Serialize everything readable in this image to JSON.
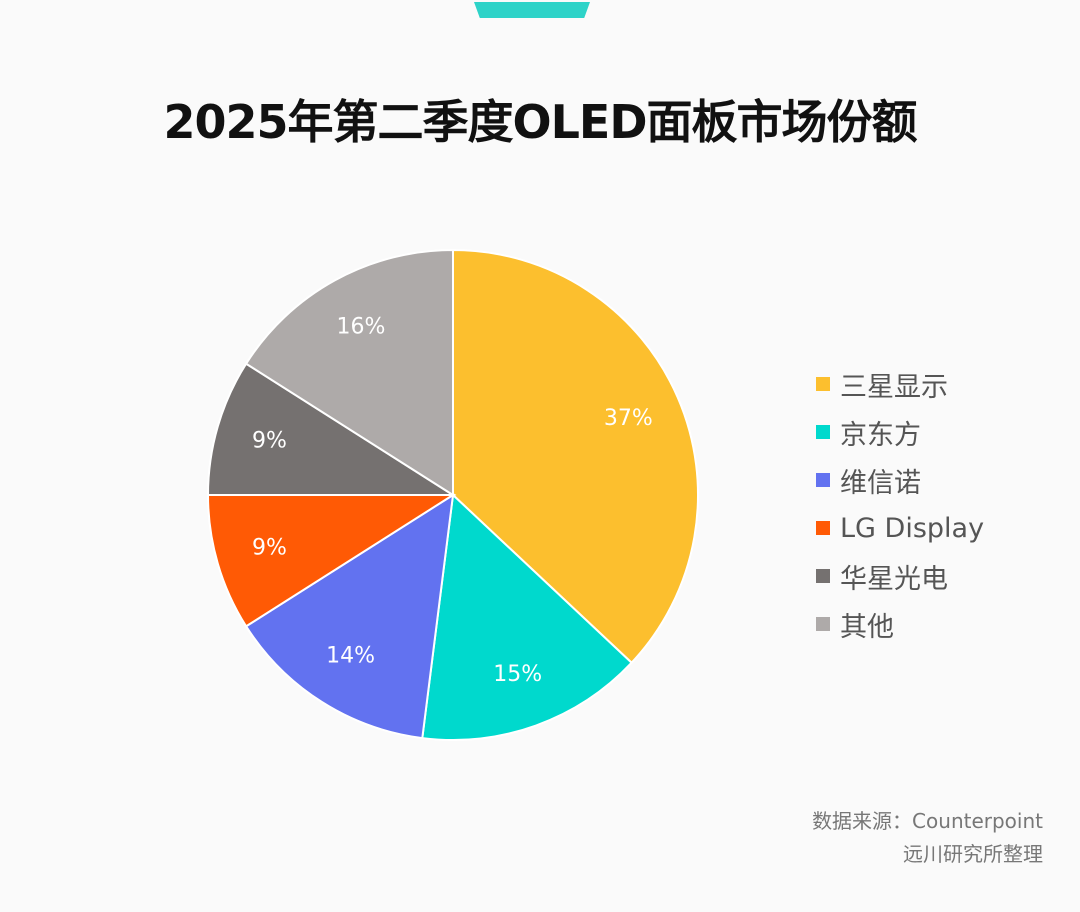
{
  "chart_data": {
    "type": "pie",
    "title": "2025年第二季度OLED面板市场份额",
    "slices": [
      {
        "label": "三星显示",
        "value": 37,
        "data_label": "37%",
        "color": "#fcbf2e"
      },
      {
        "label": "京东方",
        "value": 15,
        "data_label": "15%",
        "color": "#00d9cd"
      },
      {
        "label": "维信诺",
        "value": 14,
        "data_label": "14%",
        "color": "#6272f0"
      },
      {
        "label": "LG Display",
        "value": 9,
        "data_label": "9%",
        "color": "#ff5a05"
      },
      {
        "label": "华星光电",
        "value": 9,
        "data_label": "9%",
        "color": "#757170"
      },
      {
        "label": "其他",
        "value": 16,
        "data_label": "16%",
        "color": "#aeaaa9"
      }
    ],
    "start": "top",
    "direction": "clockwise",
    "legend_position": "right"
  },
  "source": {
    "line1": "数据来源：Counterpoint",
    "line2": "远川研究所整理"
  },
  "accent_color": "#2ed3c8"
}
